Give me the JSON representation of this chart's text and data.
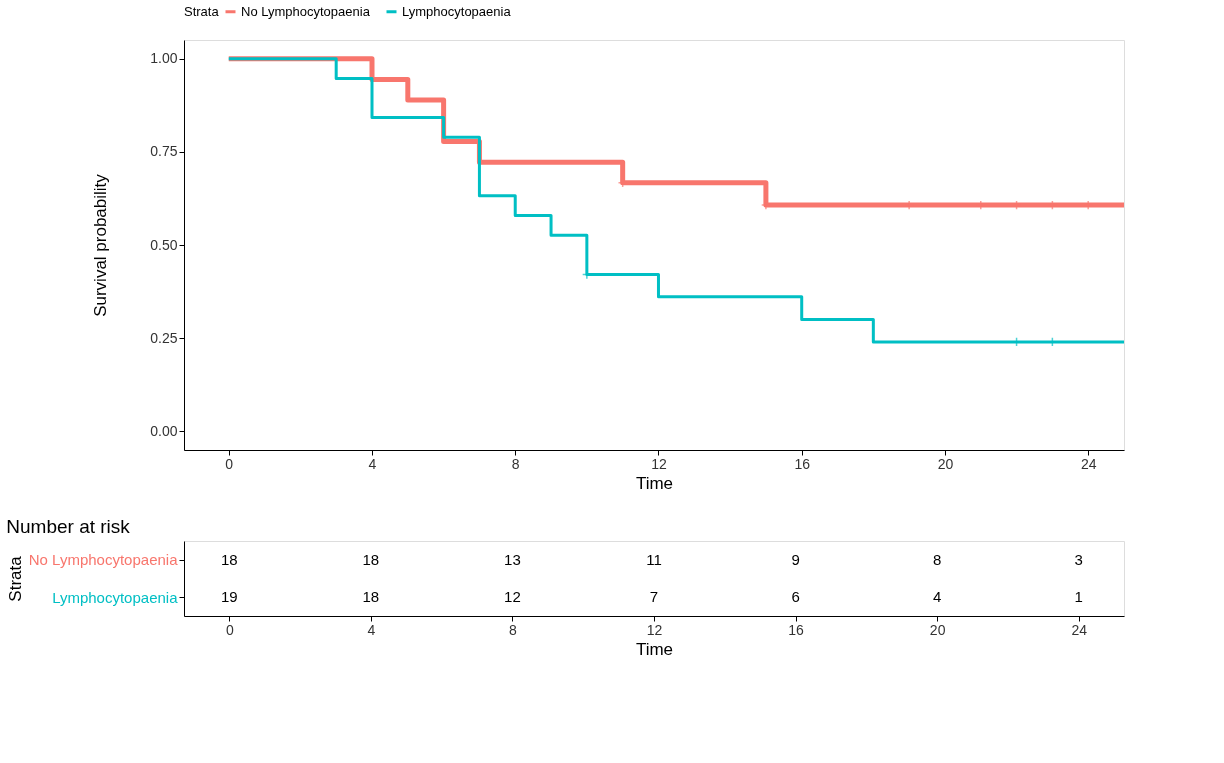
{
  "chart_data": [
    {
      "type": "step",
      "xlabel": "Time",
      "ylabel": "Survival probability",
      "legend_title": "Strata",
      "legend": "top",
      "grid": false,
      "xlim": [
        -1.25,
        25
      ],
      "xticks": [
        0,
        4,
        8,
        12,
        16,
        20,
        24
      ],
      "ylim": [
        -0.05,
        1.05
      ],
      "yticks": [
        {
          "value": 0,
          "label": "0.00"
        },
        {
          "value": 0.25,
          "label": "0.25"
        },
        {
          "value": 0.5,
          "label": "0.50"
        },
        {
          "value": 0.75,
          "label": "0.75"
        },
        {
          "value": 1,
          "label": "1.00"
        }
      ],
      "series": [
        {
          "name": "No Lymphocytopaenia",
          "color": "#f8766d",
          "x": [
            0,
            4,
            5,
            6,
            7,
            11,
            15,
            25
          ],
          "values": [
            1,
            0.944,
            0.889,
            0.778,
            0.722,
            0.667,
            0.607,
            0.607
          ]
        },
        {
          "name": "Lymphocytopaenia",
          "color": "#00bfc4",
          "x": [
            0,
            3,
            4,
            6,
            7,
            8,
            9,
            10,
            12,
            16,
            18,
            25
          ],
          "values": [
            1,
            0.947,
            0.842,
            0.789,
            0.632,
            0.579,
            0.526,
            0.421,
            0.361,
            0.3,
            0.24,
            0.24
          ]
        },
        {
          "type": "scatter",
          "marker": "cross",
          "color": "#f8766d",
          "x": [
            11,
            15,
            19,
            21,
            22,
            23,
            24
          ],
          "values": [
            0.667,
            0.607,
            0.607,
            0.607,
            0.607,
            0.607,
            0.607
          ]
        },
        {
          "type": "scatter",
          "marker": "cross",
          "color": "#00bfc4",
          "x": [
            10,
            22,
            23
          ],
          "values": [
            0.421,
            0.24,
            0.24
          ]
        }
      ]
    },
    {
      "type": "heatmap",
      "title": "Number at risk",
      "xlabel": "Time",
      "ylabel": "Strata",
      "data_labels": true,
      "categories": [
        "0",
        "4",
        "8",
        "12",
        "16",
        "20",
        "24"
      ],
      "y_categories": [
        "No Lymphocytopaenia",
        "Lymphocytopaenia"
      ],
      "cells": [
        [
          18,
          18,
          13,
          11,
          9,
          8,
          3
        ],
        [
          19,
          18,
          12,
          7,
          6,
          4,
          1
        ]
      ]
    }
  ]
}
